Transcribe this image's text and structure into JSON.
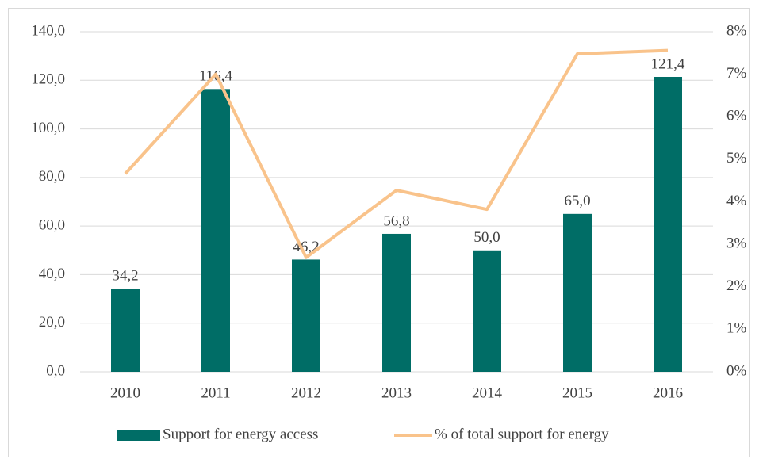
{
  "chart_data": {
    "type": "bar",
    "categories": [
      "2010",
      "2011",
      "2012",
      "2013",
      "2014",
      "2015",
      "2016"
    ],
    "series": [
      {
        "name": "Support for energy access",
        "type": "bar",
        "color": "#006d66",
        "values": [
          34.2,
          116.4,
          46.2,
          56.8,
          50.0,
          65.0,
          121.4
        ],
        "value_labels": [
          "34,2",
          "116,4",
          "46,2",
          "56,8",
          "50,0",
          "65,0",
          "121,4"
        ]
      },
      {
        "name": "% of total support for energy",
        "type": "line",
        "color": "#f9c38b",
        "axis": "y2",
        "values": [
          4.66,
          7.0,
          2.69,
          4.27,
          3.82,
          7.48,
          7.56
        ]
      }
    ],
    "ylim": [
      0,
      140
    ],
    "yticks": [
      {
        "value": 0,
        "label": "0,0"
      },
      {
        "value": 20,
        "label": "20,0"
      },
      {
        "value": 40,
        "label": "40,0"
      },
      {
        "value": 60,
        "label": "60,0"
      },
      {
        "value": 80,
        "label": "80,0"
      },
      {
        "value": 100,
        "label": "100,0"
      },
      {
        "value": 120,
        "label": "120,0"
      },
      {
        "value": 140,
        "label": "140,0"
      }
    ],
    "y2lim": [
      0,
      8
    ],
    "y2ticks": [
      {
        "value": 0,
        "label": "0%"
      },
      {
        "value": 1,
        "label": "1%"
      },
      {
        "value": 2,
        "label": "2%"
      },
      {
        "value": 3,
        "label": "3%"
      },
      {
        "value": 4,
        "label": "4%"
      },
      {
        "value": 5,
        "label": "5%"
      },
      {
        "value": 6,
        "label": "6%"
      },
      {
        "value": 7,
        "label": "7%"
      },
      {
        "value": 8,
        "label": "8%"
      }
    ],
    "grid": true,
    "legend": "bottom"
  }
}
